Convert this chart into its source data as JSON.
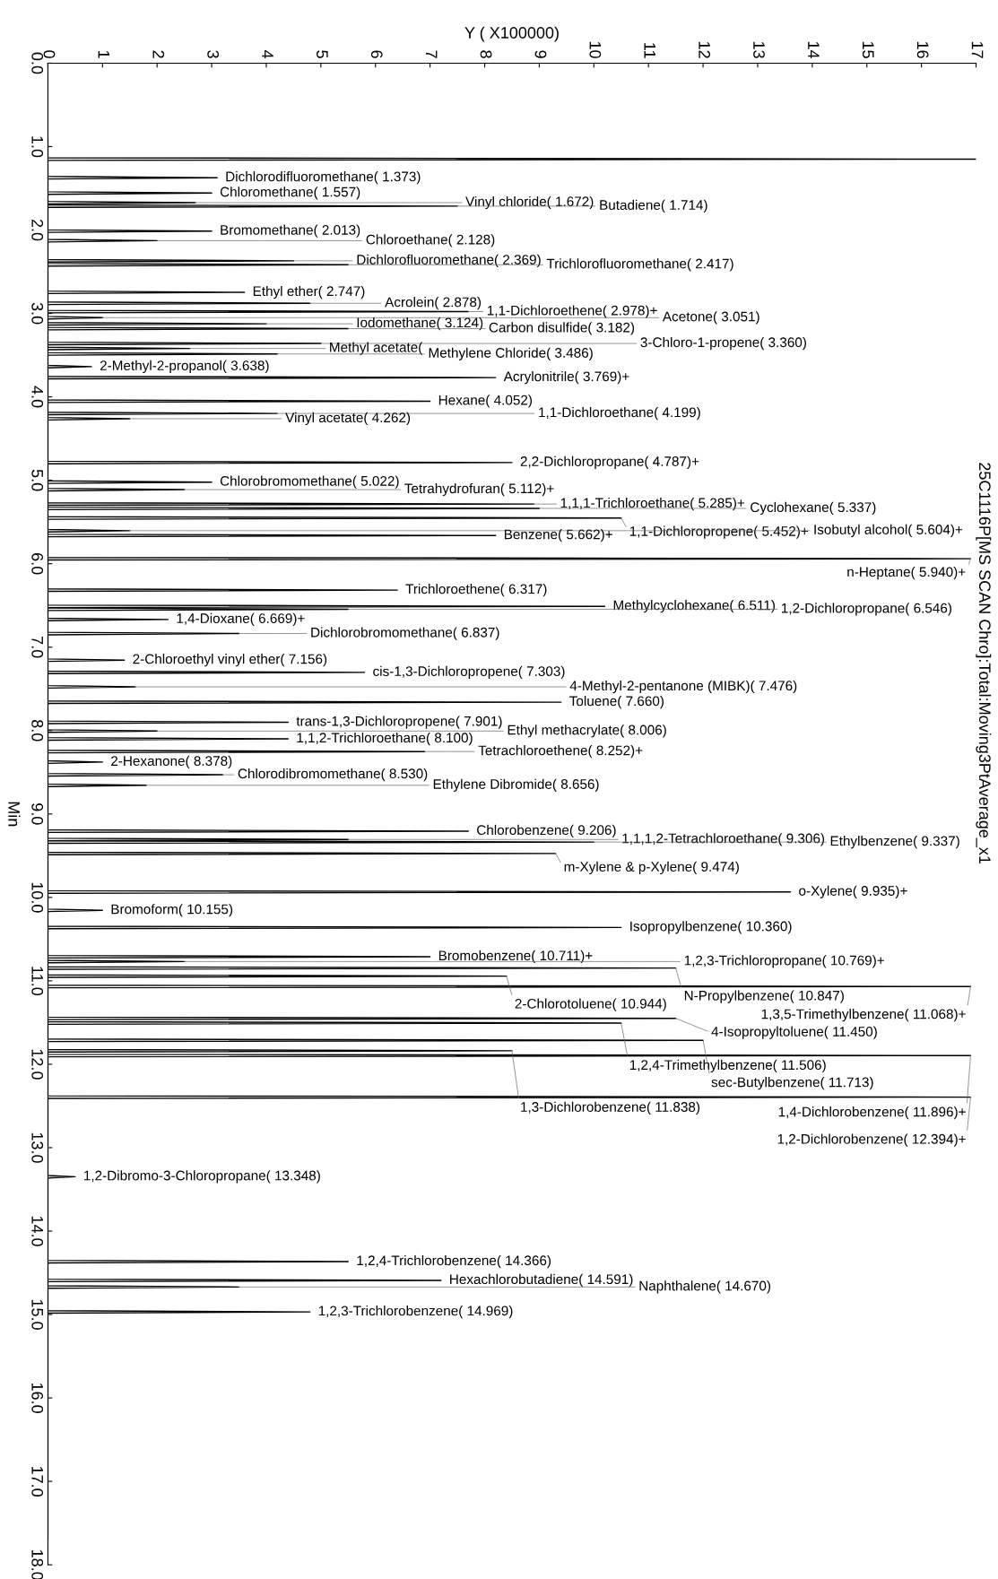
{
  "chart_data": {
    "type": "line",
    "orientation": "horizontal",
    "xlabel": "Y ( X100000)",
    "ylabel": "Min",
    "xlim": [
      0,
      17
    ],
    "xticks": [
      0,
      1,
      2,
      3,
      4,
      5,
      6,
      7,
      8,
      9,
      10,
      11,
      12,
      13,
      14,
      15,
      16,
      17
    ],
    "ylim": [
      18,
      0
    ],
    "yticks": [
      {
        "value": 0,
        "label": "0.0"
      },
      {
        "value": 1,
        "label": "1.0"
      },
      {
        "value": 2,
        "label": "2.0"
      },
      {
        "value": 3,
        "label": "3.0"
      },
      {
        "value": 4,
        "label": "4.0"
      },
      {
        "value": 5,
        "label": "5.0"
      },
      {
        "value": 6,
        "label": "6.0"
      },
      {
        "value": 7,
        "label": "7.0"
      },
      {
        "value": 8,
        "label": "8.0"
      },
      {
        "value": 9,
        "label": "9.0"
      },
      {
        "value": 10,
        "label": "10.0"
      },
      {
        "value": 11,
        "label": "11.0"
      },
      {
        "value": 12,
        "label": "12.0"
      },
      {
        "value": 13,
        "label": "13.0"
      },
      {
        "value": 14,
        "label": "14.0"
      },
      {
        "value": 15,
        "label": "15.0"
      },
      {
        "value": 16,
        "label": "16.0"
      },
      {
        "value": 17,
        "label": "17.0"
      },
      {
        "value": 18,
        "label": "18.0"
      }
    ],
    "grid": false,
    "marker": "none",
    "line_style": "solid",
    "series": [
      {
        "color": "#000000",
        "x": [
          0.9,
          1.135,
          1.15,
          1.165,
          1.358,
          1.373,
          1.388,
          1.542,
          1.557,
          1.572,
          1.657,
          1.672,
          1.687,
          1.699,
          1.714,
          1.729,
          1.998,
          2.013,
          2.028,
          2.113,
          2.128,
          2.143,
          2.354,
          2.369,
          2.384,
          2.402,
          2.417,
          2.432,
          2.732,
          2.747,
          2.762,
          2.863,
          2.878,
          2.893,
          2.963,
          2.978,
          2.993,
          3.036,
          3.051,
          3.066,
          3.109,
          3.124,
          3.139,
          3.167,
          3.182,
          3.197,
          3.345,
          3.36,
          3.375,
          3.405,
          3.42,
          3.435,
          3.471,
          3.486,
          3.501,
          3.623,
          3.638,
          3.653,
          3.754,
          3.769,
          3.784,
          4.037,
          4.052,
          4.067,
          4.184,
          4.199,
          4.214,
          4.247,
          4.262,
          4.277,
          4.772,
          4.787,
          4.802,
          5.007,
          5.022,
          5.037,
          5.097,
          5.112,
          5.127,
          5.27,
          5.285,
          5.3,
          5.322,
          5.337,
          5.352,
          5.437,
          5.452,
          5.467,
          5.589,
          5.604,
          5.619,
          5.647,
          5.662,
          5.677,
          5.925,
          5.94,
          5.955,
          6.302,
          6.317,
          6.332,
          6.496,
          6.511,
          6.526,
          6.531,
          6.546,
          6.561,
          6.654,
          6.669,
          6.684,
          6.822,
          6.837,
          6.852,
          7.141,
          7.156,
          7.171,
          7.288,
          7.303,
          7.318,
          7.461,
          7.476,
          7.491,
          7.645,
          7.66,
          7.675,
          7.886,
          7.901,
          7.916,
          7.991,
          8.006,
          8.021,
          8.085,
          8.1,
          8.115,
          8.237,
          8.252,
          8.267,
          8.363,
          8.378,
          8.393,
          8.515,
          8.53,
          8.545,
          8.641,
          8.656,
          8.671,
          9.191,
          9.206,
          9.221,
          9.291,
          9.306,
          9.321,
          9.322,
          9.337,
          9.352,
          9.459,
          9.474,
          9.489,
          9.92,
          9.935,
          9.95,
          10.14,
          10.155,
          10.17,
          10.345,
          10.36,
          10.375,
          10.696,
          10.711,
          10.726,
          10.754,
          10.769,
          10.784,
          10.832,
          10.847,
          10.862,
          10.929,
          10.944,
          10.959,
          11.053,
          11.068,
          11.083,
          11.435,
          11.45,
          11.465,
          11.491,
          11.506,
          11.521,
          11.698,
          11.713,
          11.728,
          11.823,
          11.838,
          11.853,
          11.881,
          11.896,
          11.911,
          12.379,
          12.394,
          12.409,
          13.333,
          13.348,
          13.363,
          14.351,
          14.366,
          14.381,
          14.576,
          14.591,
          14.606,
          14.655,
          14.67,
          14.685,
          14.954,
          14.969,
          14.984,
          17.7
        ],
        "values": [
          0,
          0,
          17,
          0,
          0,
          3.1,
          0,
          0,
          3.0,
          0,
          0,
          2.7,
          0,
          0,
          7.5,
          0,
          0,
          3.0,
          0,
          0,
          2.0,
          0,
          0,
          4.5,
          0,
          0,
          5.5,
          0,
          0,
          3.6,
          0,
          0,
          4.8,
          0,
          0,
          7.7,
          0,
          0,
          1.0,
          0,
          0,
          4.0,
          0,
          0,
          5.5,
          0,
          0,
          5.0,
          0,
          0,
          2.6,
          0,
          0,
          4.2,
          0,
          0,
          0.8,
          0,
          0,
          8.2,
          0,
          0,
          7.0,
          0,
          0,
          4.2,
          0,
          0,
          1.5,
          0,
          0,
          8.5,
          0,
          0,
          3.0,
          0,
          0,
          2.5,
          0,
          0,
          8.9,
          0,
          0,
          9.0,
          0,
          0,
          10.5,
          0,
          0,
          1.5,
          0,
          0,
          8.2,
          0,
          0,
          16.9,
          0,
          0,
          6.4,
          0,
          0,
          10.2,
          0,
          0,
          5.5,
          0,
          0,
          2.2,
          0,
          0,
          3.5,
          0,
          0,
          1.4,
          0,
          0,
          5.8,
          0,
          0,
          1.6,
          0,
          0,
          9.4,
          0,
          0,
          4.4,
          0,
          0,
          2.0,
          0,
          0,
          4.4,
          0,
          0,
          6.9,
          0,
          0,
          1.0,
          0,
          0,
          3.2,
          0,
          0,
          1.8,
          0,
          0,
          7.7,
          0,
          0,
          5.5,
          0,
          0,
          10.0,
          0,
          0,
          9.3,
          0,
          0,
          13.6,
          0,
          0,
          1.0,
          0,
          0,
          10.5,
          0,
          0,
          7.0,
          0,
          0,
          2.5,
          0,
          0,
          11.5,
          0,
          0,
          8.4,
          0,
          0,
          16.9,
          0,
          0,
          11.5,
          0,
          0,
          10.5,
          0,
          0,
          12.0,
          0,
          0,
          8.5,
          0,
          0,
          16.9,
          0,
          0,
          16.9,
          0,
          0,
          0.5,
          0,
          0,
          5.5,
          0,
          0,
          7.2,
          0,
          0,
          3.5,
          0,
          0,
          4.8,
          0,
          0
        ]
      }
    ],
    "annotations": [
      {
        "text": "Dichlorodifluoromethane( 1.373)",
        "x": 3.1,
        "y": 1.373
      },
      {
        "text": "Chloromethane( 1.557)",
        "x": 3.0,
        "y": 1.557
      },
      {
        "text": "Vinyl chloride( 1.672)",
        "x": 2.7,
        "y": 1.672
      },
      {
        "text": "Butadiene( 1.714)",
        "x": 7.5,
        "y": 1.714
      },
      {
        "text": "Bromomethane( 2.013)",
        "x": 3.0,
        "y": 2.013
      },
      {
        "text": "Chloroethane( 2.128)",
        "x": 2.0,
        "y": 2.128
      },
      {
        "text": "Dichlorofluoromethane( 2.369)",
        "x": 4.5,
        "y": 2.369
      },
      {
        "text": "Trichlorofluoromethane( 2.417)",
        "x": 5.5,
        "y": 2.417
      },
      {
        "text": "Ethyl ether( 2.747)",
        "x": 3.6,
        "y": 2.747
      },
      {
        "text": "Acrolein( 2.878)",
        "x": 4.8,
        "y": 2.878
      },
      {
        "text": "1,1-Dichloroethene( 2.978)+",
        "x": 7.7,
        "y": 2.978
      },
      {
        "text": "Acetone( 3.051)",
        "x": 1.0,
        "y": 3.051
      },
      {
        "text": "Iodomethane( 3.124)",
        "x": 4.0,
        "y": 3.124
      },
      {
        "text": "Carbon disulfide( 3.182)",
        "x": 5.5,
        "y": 3.182
      },
      {
        "text": "3-Chloro-1-propene( 3.360)",
        "x": 5.0,
        "y": 3.36
      },
      {
        "text": "Methyl acetate(",
        "x": 2.6,
        "y": 3.42
      },
      {
        "text": "Methylene Chloride( 3.486)",
        "x": 4.2,
        "y": 3.486
      },
      {
        "text": "2-Methyl-2-propanol( 3.638)",
        "x": 0.8,
        "y": 3.638
      },
      {
        "text": "Acrylonitrile( 3.769)+",
        "x": 8.2,
        "y": 3.769
      },
      {
        "text": "Hexane( 4.052)",
        "x": 7.0,
        "y": 4.052
      },
      {
        "text": "1,1-Dichloroethane( 4.199)",
        "x": 4.2,
        "y": 4.199
      },
      {
        "text": "Vinyl acetate( 4.262)",
        "x": 1.5,
        "y": 4.262
      },
      {
        "text": "2,2-Dichloropropane( 4.787)+",
        "x": 8.5,
        "y": 4.787
      },
      {
        "text": "Chlorobromomethane( 5.022)",
        "x": 3.0,
        "y": 5.022
      },
      {
        "text": "Tetrahydrofuran( 5.112)+",
        "x": 2.5,
        "y": 5.112
      },
      {
        "text": "1,1,1-Trichloroethane( 5.285)+",
        "x": 8.9,
        "y": 5.285
      },
      {
        "text": "Cyclohexane( 5.337)",
        "x": 9.0,
        "y": 5.337
      },
      {
        "text": "1,1-Dichloropropene( 5.452)+",
        "x": 10.5,
        "y": 5.452
      },
      {
        "text": "Isobutyl alcohol( 5.604)+",
        "x": 1.5,
        "y": 5.604
      },
      {
        "text": "Benzene( 5.662)+",
        "x": 8.2,
        "y": 5.662
      },
      {
        "text": "n-Heptane( 5.940)+",
        "x": 16.9,
        "y": 5.94
      },
      {
        "text": "Trichloroethene( 6.317)",
        "x": 6.4,
        "y": 6.317
      },
      {
        "text": "Methylcyclohexane( 6.511)",
        "x": 10.2,
        "y": 6.511
      },
      {
        "text": "1,2-Dichloropropane( 6.546)",
        "x": 5.5,
        "y": 6.546
      },
      {
        "text": "1,4-Dioxane( 6.669)+",
        "x": 2.2,
        "y": 6.669
      },
      {
        "text": "Dichlorobromomethane( 6.837)",
        "x": 3.5,
        "y": 6.837
      },
      {
        "text": "2-Chloroethyl vinyl ether( 7.156)",
        "x": 1.4,
        "y": 7.156
      },
      {
        "text": "cis-1,3-Dichloropropene( 7.303)",
        "x": 5.8,
        "y": 7.303
      },
      {
        "text": "4-Methyl-2-pentanone (MIBK)( 7.476)",
        "x": 1.6,
        "y": 7.476
      },
      {
        "text": "Toluene( 7.660)",
        "x": 9.4,
        "y": 7.66
      },
      {
        "text": "trans-1,3-Dichloropropene( 7.901)",
        "x": 4.4,
        "y": 7.901
      },
      {
        "text": "Ethyl methacrylate( 8.006)",
        "x": 2.0,
        "y": 8.006
      },
      {
        "text": "1,1,2-Trichloroethane( 8.100)",
        "x": 4.4,
        "y": 8.1
      },
      {
        "text": "Tetrachloroethene( 8.252)+",
        "x": 6.9,
        "y": 8.252
      },
      {
        "text": "2-Hexanone( 8.378)",
        "x": 1.0,
        "y": 8.378
      },
      {
        "text": "Chlorodibromomethane( 8.530)",
        "x": 3.2,
        "y": 8.53
      },
      {
        "text": "Ethylene Dibromide( 8.656)",
        "x": 1.8,
        "y": 8.656
      },
      {
        "text": "Chlorobenzene( 9.206)",
        "x": 7.7,
        "y": 9.206
      },
      {
        "text": "1,1,1,2-Tetrachloroethane( 9.306)",
        "x": 5.5,
        "y": 9.306
      },
      {
        "text": "Ethylbenzene( 9.337)",
        "x": 10.0,
        "y": 9.337
      },
      {
        "text": "m-Xylene & p-Xylene( 9.474)",
        "x": 9.3,
        "y": 9.474
      },
      {
        "text": "o-Xylene( 9.935)+",
        "x": 13.6,
        "y": 9.935
      },
      {
        "text": "Bromoform( 10.155)",
        "x": 1.0,
        "y": 10.155
      },
      {
        "text": "Isopropylbenzene( 10.360)",
        "x": 10.5,
        "y": 10.36
      },
      {
        "text": "Bromobenzene( 10.711)+",
        "x": 7.0,
        "y": 10.711
      },
      {
        "text": "1,2,3-Trichloropropane( 10.769)+",
        "x": 2.5,
        "y": 10.769
      },
      {
        "text": "N-Propylbenzene( 10.847)",
        "x": 11.5,
        "y": 10.847
      },
      {
        "text": "2-Chlorotoluene( 10.944)",
        "x": 8.4,
        "y": 10.944
      },
      {
        "text": "1,3,5-Trimethylbenzene( 11.068)+",
        "x": 16.9,
        "y": 11.068
      },
      {
        "text": "4-Isopropyltoluene( 11.450)",
        "x": 11.5,
        "y": 11.45
      },
      {
        "text": "1,2,4-Trimethylbenzene( 11.506)",
        "x": 10.5,
        "y": 11.506
      },
      {
        "text": "sec-Butylbenzene( 11.713)",
        "x": 12.0,
        "y": 11.713
      },
      {
        "text": "1,3-Dichlorobenzene( 11.838)",
        "x": 8.5,
        "y": 11.838
      },
      {
        "text": "1,4-Dichlorobenzene( 11.896)+",
        "x": 16.9,
        "y": 11.896
      },
      {
        "text": "1,2-Dichlorobenzene( 12.394)+",
        "x": 16.9,
        "y": 12.394
      },
      {
        "text": "1,2-Dibromo-3-Chloropropane( 13.348)",
        "x": 0.5,
        "y": 13.348
      },
      {
        "text": "1,2,4-Trichlorobenzene( 14.366)",
        "x": 5.5,
        "y": 14.366
      },
      {
        "text": "Hexachlorobutadiene( 14.591)",
        "x": 7.2,
        "y": 14.591
      },
      {
        "text": "Naphthalene( 14.670)",
        "x": 3.5,
        "y": 14.67
      },
      {
        "text": "1,2,3-Trichlorobenzene( 14.969)",
        "x": 4.8,
        "y": 14.969
      },
      "25C1116P[MS SCAN Chro]:Total:Moving3PtAverage_x1"
    ]
  }
}
